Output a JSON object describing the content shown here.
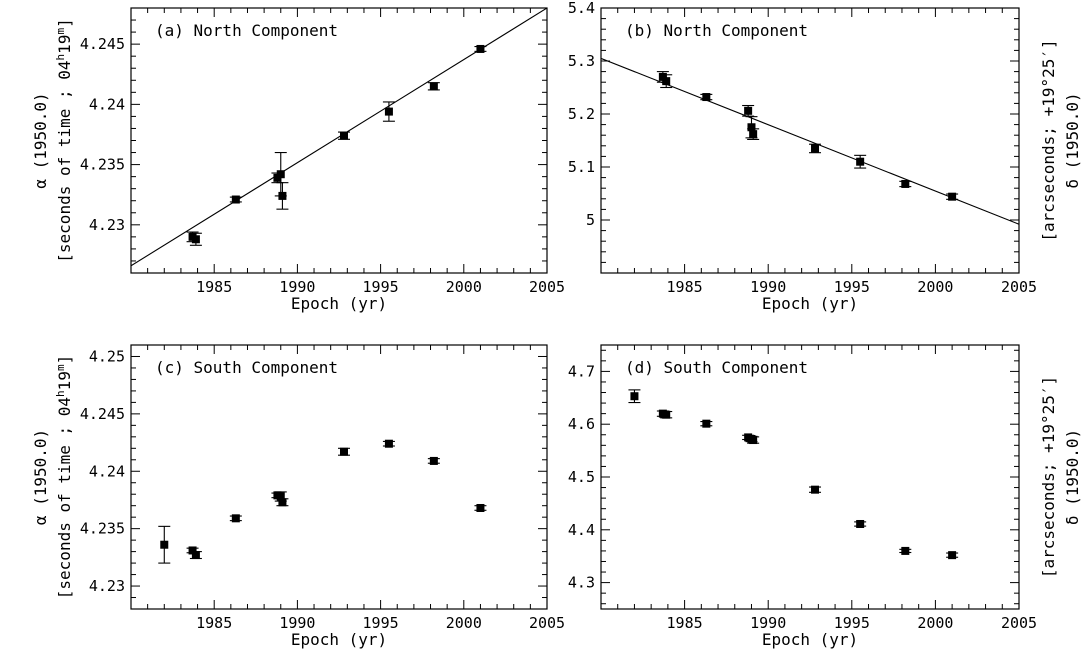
{
  "chart_data": [
    {
      "type": "scatter",
      "panel_label": "(a) North Component",
      "xlabel": "Epoch (yr)",
      "ylabel": "α (1950.0)",
      "ylabel2": "[seconds of time ; 04h19m]",
      "xlim": [
        1980,
        2005
      ],
      "ylim": [
        4.226,
        4.248
      ],
      "xticks": [
        1985,
        1990,
        1995,
        2000,
        2005
      ],
      "yticks": [
        4.23,
        4.235,
        4.24,
        4.245
      ],
      "ytick_labels": [
        "4.23",
        "4.235",
        "4.24",
        "4.245"
      ],
      "points": [
        {
          "x": 1983.7,
          "y": 4.229,
          "err": 0.0004
        },
        {
          "x": 1983.9,
          "y": 4.2288,
          "err": 0.0005
        },
        {
          "x": 1986.3,
          "y": 4.2321,
          "err": 0.0002
        },
        {
          "x": 1988.8,
          "y": 4.2339,
          "err": 0.0004
        },
        {
          "x": 1989.0,
          "y": 4.2342,
          "err": 0.0018
        },
        {
          "x": 1989.1,
          "y": 4.2324,
          "err": 0.0011
        },
        {
          "x": 1992.8,
          "y": 4.2374,
          "err": 0.0003
        },
        {
          "x": 1995.5,
          "y": 4.2394,
          "err": 0.0008
        },
        {
          "x": 1998.2,
          "y": 4.2415,
          "err": 0.0003
        },
        {
          "x": 2001.0,
          "y": 4.2446,
          "err": 0.0002
        }
      ],
      "fit_line": {
        "x": [
          1980,
          2005
        ],
        "y": [
          4.2266,
          4.248
        ]
      }
    },
    {
      "type": "scatter",
      "panel_label": "(b) North Component",
      "xlabel": "Epoch (yr)",
      "ylabel": "δ (1950.0)",
      "ylabel2": "[arcseconds; +19°25′]",
      "xlim": [
        1980,
        2005
      ],
      "ylim": [
        4.9,
        5.4
      ],
      "xticks": [
        1985,
        1990,
        1995,
        2000,
        2005
      ],
      "yticks": [
        5.0,
        5.1,
        5.2,
        5.3,
        5.4
      ],
      "ytick_labels": [
        "5",
        "5.1",
        "5.2",
        "5.3",
        "5.4"
      ],
      "points": [
        {
          "x": 1983.7,
          "y": 5.27,
          "err": 0.01
        },
        {
          "x": 1983.9,
          "y": 5.262,
          "err": 0.012
        },
        {
          "x": 1986.3,
          "y": 5.232,
          "err": 0.005
        },
        {
          "x": 1988.8,
          "y": 5.206,
          "err": 0.01
        },
        {
          "x": 1989.0,
          "y": 5.175,
          "err": 0.02
        },
        {
          "x": 1989.1,
          "y": 5.162,
          "err": 0.01
        },
        {
          "x": 1992.8,
          "y": 5.135,
          "err": 0.008
        },
        {
          "x": 1995.5,
          "y": 5.11,
          "err": 0.012
        },
        {
          "x": 1998.2,
          "y": 5.068,
          "err": 0.005
        },
        {
          "x": 2001.0,
          "y": 5.044,
          "err": 0.005
        }
      ],
      "fit_line": {
        "x": [
          1980,
          2005
        ],
        "y": [
          5.305,
          4.992
        ]
      }
    },
    {
      "type": "scatter",
      "panel_label": "(c) South Component",
      "xlabel": "Epoch (yr)",
      "ylabel": "α (1950.0)",
      "ylabel2": "[seconds of time ; 04h19m]",
      "xlim": [
        1980,
        2005
      ],
      "ylim": [
        4.228,
        4.251
      ],
      "xticks": [
        1985,
        1990,
        1995,
        2000,
        2005
      ],
      "yticks": [
        4.23,
        4.235,
        4.24,
        4.245,
        4.25
      ],
      "ytick_labels": [
        "4.23",
        "4.235",
        "4.24",
        "4.245",
        "4.25"
      ],
      "points": [
        {
          "x": 1982.0,
          "y": 4.2336,
          "err": 0.0016
        },
        {
          "x": 1983.7,
          "y": 4.2331,
          "err": 0.0002
        },
        {
          "x": 1983.9,
          "y": 4.2327,
          "err": 0.0003
        },
        {
          "x": 1986.3,
          "y": 4.2359,
          "err": 0.0002
        },
        {
          "x": 1988.8,
          "y": 4.2379,
          "err": 0.0002
        },
        {
          "x": 1989.0,
          "y": 4.2378,
          "err": 0.0004
        },
        {
          "x": 1989.1,
          "y": 4.2373,
          "err": 0.0003
        },
        {
          "x": 1992.8,
          "y": 4.2417,
          "err": 0.0003
        },
        {
          "x": 1995.5,
          "y": 4.2424,
          "err": 0.0002
        },
        {
          "x": 1998.2,
          "y": 4.2409,
          "err": 0.0002
        },
        {
          "x": 2001.0,
          "y": 4.2368,
          "err": 0.0002
        }
      ]
    },
    {
      "type": "scatter",
      "panel_label": "(d) South Component",
      "xlabel": "Epoch (yr)",
      "ylabel": "δ (1950.0)",
      "ylabel2": "[arcseconds; +19°25′]",
      "xlim": [
        1980,
        2005
      ],
      "ylim": [
        4.25,
        4.75
      ],
      "xticks": [
        1985,
        1990,
        1995,
        2000,
        2005
      ],
      "yticks": [
        4.3,
        4.4,
        4.5,
        4.6,
        4.7
      ],
      "ytick_labels": [
        "4.3",
        "4.4",
        "4.5",
        "4.6",
        "4.7"
      ],
      "points": [
        {
          "x": 1982.0,
          "y": 4.653,
          "err": 0.012
        },
        {
          "x": 1983.7,
          "y": 4.62,
          "err": 0.005
        },
        {
          "x": 1983.9,
          "y": 4.618,
          "err": 0.006
        },
        {
          "x": 1986.3,
          "y": 4.601,
          "err": 0.004
        },
        {
          "x": 1988.8,
          "y": 4.575,
          "err": 0.004
        },
        {
          "x": 1989.0,
          "y": 4.572,
          "err": 0.005
        },
        {
          "x": 1989.1,
          "y": 4.57,
          "err": 0.006
        },
        {
          "x": 1992.8,
          "y": 4.476,
          "err": 0.005
        },
        {
          "x": 1995.5,
          "y": 4.411,
          "err": 0.004
        },
        {
          "x": 1998.2,
          "y": 4.36,
          "err": 0.003
        },
        {
          "x": 2001.0,
          "y": 4.352,
          "err": 0.004
        }
      ]
    }
  ]
}
